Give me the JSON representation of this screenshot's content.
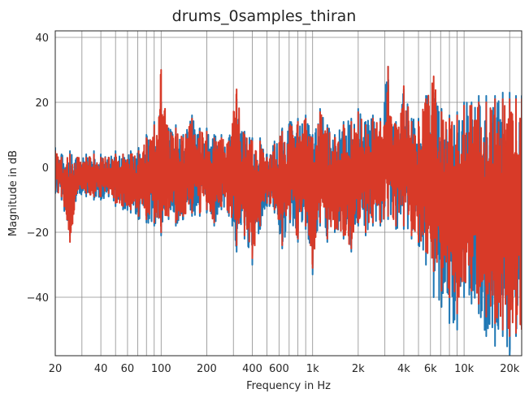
{
  "chart_data": {
    "type": "line",
    "title": "drums_0samples_thiran",
    "xlabel": "Frequency in Hz",
    "ylabel": "Magnitude in dB",
    "xscale": "log",
    "xlim": [
      20,
      24000
    ],
    "ylim": [
      -58,
      42
    ],
    "grid": true,
    "legend": "none",
    "x_ticks": [
      {
        "value": 20,
        "label": "20"
      },
      {
        "value": 40,
        "label": "40"
      },
      {
        "value": 60,
        "label": "60"
      },
      {
        "value": 100,
        "label": "100"
      },
      {
        "value": 200,
        "label": "200"
      },
      {
        "value": 400,
        "label": "400"
      },
      {
        "value": 600,
        "label": "600"
      },
      {
        "value": 1000,
        "label": "1k"
      },
      {
        "value": 2000,
        "label": "2k"
      },
      {
        "value": 4000,
        "label": "4k"
      },
      {
        "value": 6000,
        "label": "6k"
      },
      {
        "value": 10000,
        "label": "10k"
      },
      {
        "value": 20000,
        "label": "20k"
      }
    ],
    "x_minor_grid": [
      30,
      50,
      70,
      80,
      90,
      300,
      500,
      700,
      800,
      900,
      3000,
      5000,
      7000,
      8000,
      9000
    ],
    "y_ticks": [
      {
        "value": 40,
        "label": "40"
      },
      {
        "value": 20,
        "label": "20"
      },
      {
        "value": 0,
        "label": "0"
      },
      {
        "value": -20,
        "label": "−20"
      },
      {
        "value": -40,
        "label": "−40"
      }
    ],
    "series": [
      {
        "color": "#1f77b4",
        "x": [
          20,
          22,
          25,
          28,
          32,
          36,
          40,
          45,
          50,
          56,
          63,
          71,
          80,
          90,
          100,
          112,
          125,
          140,
          160,
          180,
          200,
          224,
          250,
          280,
          315,
          355,
          400,
          450,
          500,
          560,
          630,
          710,
          800,
          900,
          1000,
          1120,
          1250,
          1400,
          1600,
          1800,
          2000,
          2240,
          2500,
          2800,
          3150,
          3550,
          4000,
          4500,
          5000,
          5600,
          6300,
          7100,
          8000,
          9000,
          10000,
          11200,
          12500,
          14000,
          16000,
          18000,
          20000,
          22000,
          24000
        ],
        "max": [
          6,
          4,
          5,
          3,
          4,
          5,
          4,
          3,
          5,
          4,
          5,
          6,
          10,
          14,
          20,
          12,
          13,
          10,
          16,
          12,
          12,
          10,
          10,
          9,
          21,
          11,
          9,
          9,
          4,
          8,
          12,
          14,
          15,
          16,
          10,
          18,
          13,
          10,
          14,
          15,
          18,
          14,
          16,
          15,
          31,
          14,
          24,
          15,
          15,
          22,
          23,
          18,
          16,
          17,
          20,
          20,
          22,
          22,
          22,
          23,
          23,
          22,
          22
        ],
        "min": [
          -8,
          -10,
          -21,
          -8,
          -9,
          -10,
          -10,
          -9,
          -12,
          -13,
          -14,
          -16,
          -17,
          -18,
          -21,
          -16,
          -18,
          -16,
          -15,
          -15,
          -14,
          -18,
          -13,
          -15,
          -26,
          -22,
          -30,
          -19,
          -12,
          -14,
          -25,
          -17,
          -23,
          -19,
          -33,
          -18,
          -23,
          -20,
          -22,
          -26,
          -18,
          -21,
          -18,
          -18,
          -16,
          -19,
          -19,
          -22,
          -24,
          -30,
          -40,
          -43,
          -48,
          -50,
          -40,
          -42,
          -45,
          -52,
          -55,
          -52,
          -58,
          -52,
          -50
        ]
      },
      {
        "color": "#d83a28",
        "x": [
          20,
          22,
          25,
          28,
          32,
          36,
          40,
          45,
          50,
          56,
          63,
          71,
          80,
          90,
          100,
          112,
          125,
          140,
          160,
          180,
          200,
          224,
          250,
          280,
          315,
          355,
          400,
          450,
          500,
          560,
          630,
          710,
          800,
          900,
          1000,
          1120,
          1250,
          1400,
          1600,
          1800,
          2000,
          2240,
          2500,
          2800,
          3150,
          3550,
          4000,
          4500,
          5000,
          5600,
          6300,
          7100,
          8000,
          9000,
          10000,
          11200,
          12500,
          14000,
          16000,
          18000,
          20000,
          22000,
          24000
        ],
        "max": [
          5,
          3,
          4,
          3,
          3,
          4,
          3,
          3,
          4,
          4,
          4,
          5,
          9,
          13,
          30,
          11,
          12,
          9,
          15,
          11,
          11,
          9,
          9,
          8,
          24,
          10,
          8,
          8,
          3,
          7,
          11,
          13,
          14,
          15,
          9,
          17,
          12,
          9,
          13,
          14,
          17,
          13,
          15,
          14,
          31,
          13,
          25,
          14,
          14,
          21,
          28,
          17,
          15,
          16,
          19,
          19,
          20,
          20,
          21,
          21,
          21,
          21,
          21
        ],
        "min": [
          -7,
          -9,
          -23,
          -7,
          -8,
          -9,
          -9,
          -8,
          -11,
          -12,
          -13,
          -15,
          -16,
          -17,
          -20,
          -15,
          -17,
          -15,
          -14,
          -14,
          -13,
          -17,
          -12,
          -14,
          -24,
          -21,
          -28,
          -18,
          -11,
          -13,
          -24,
          -16,
          -22,
          -18,
          -31,
          -17,
          -22,
          -19,
          -21,
          -25,
          -17,
          -20,
          -17,
          -17,
          -15,
          -18,
          -18,
          -21,
          -23,
          -26,
          -32,
          -38,
          -40,
          -45,
          -35,
          -38,
          -42,
          -46,
          -48,
          -50,
          -52,
          -51,
          -50
        ]
      }
    ]
  }
}
